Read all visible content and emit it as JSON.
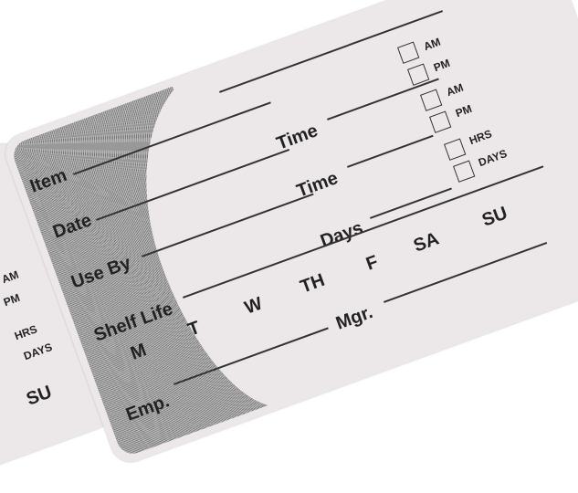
{
  "label": {
    "item": "Item",
    "time1": "Time",
    "date": "Date",
    "time2": "Time",
    "use_by": "Use By",
    "days_field": "Days",
    "shelf_life": "Shelf Life",
    "mgr": "Mgr.",
    "emp": "Emp.",
    "am1": "AM",
    "pm1": "PM",
    "am2": "AM",
    "pm2": "PM",
    "hrs": "HRS",
    "days": "DAYS",
    "weekdays": [
      "M",
      "T",
      "W",
      "TH",
      "F",
      "SA",
      "SU"
    ]
  },
  "left_label": {
    "am": "AM",
    "pm": "PM",
    "hrs": "HRS",
    "days": "DAYS",
    "su": "SU"
  },
  "colors": {
    "label": "#ece8e9",
    "text": "#222222"
  }
}
